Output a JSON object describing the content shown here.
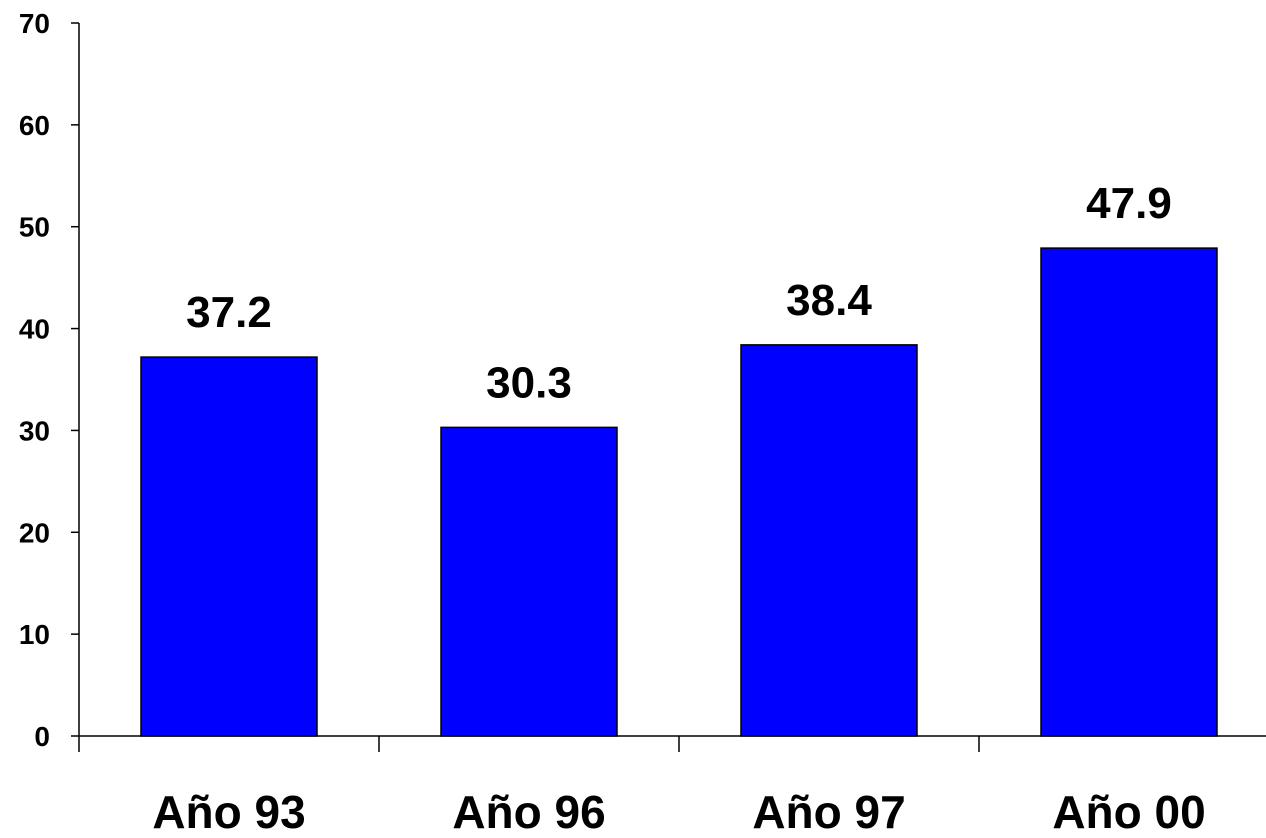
{
  "chart_data": {
    "type": "bar",
    "title": "",
    "xlabel": "",
    "ylabel": "",
    "categories": [
      "Año 93",
      "Año 96",
      "Año 97",
      "Año 00"
    ],
    "values": [
      37.2,
      30.3,
      38.4,
      47.9
    ],
    "value_labels": [
      "37.2",
      "30.3",
      "38.4",
      "47.9"
    ],
    "ylim": [
      0,
      70
    ],
    "yticks": [
      0,
      10,
      20,
      30,
      40,
      50,
      60,
      70
    ],
    "grid": false,
    "legend": "none",
    "bar_color": "#0000FF",
    "bar_edge_color": "#000000"
  }
}
